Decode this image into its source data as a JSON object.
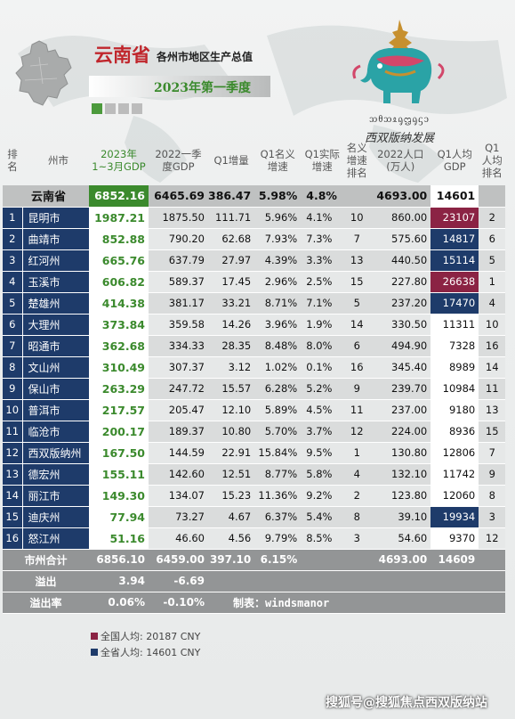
{
  "header": {
    "title": "云南省",
    "subtitle": "各州市地区生产总值",
    "period": "2023年第一季度"
  },
  "logo": {
    "script_text": "ᦉᦲᦉᦸᧂᦗᧂᦓᦱ",
    "chinese_text": "西双版纳发展"
  },
  "table": {
    "headers": [
      "排名",
      "州市",
      "2023年\n1~3月GDP",
      "2022一季度GDP",
      "Q1增量",
      "Q1名义增速",
      "Q1实际增速",
      "名义增速排名",
      "2022人口\n(万人)",
      "Q1人均GDP",
      "Q1人均排名"
    ],
    "province": {
      "name": "云南省",
      "gdp": "6852.16",
      "gdp22": "6465.69",
      "inc": "386.47",
      "nom": "5.98%",
      "real": "4.8%",
      "nrank": "",
      "pop": "4693.00",
      "pc": "14601",
      "pcr": ""
    },
    "rows": [
      {
        "rank": "1",
        "name": "昆明市",
        "gdp": "1987.21",
        "gdp22": "1875.50",
        "inc": "111.71",
        "nom": "5.96%",
        "real": "4.1%",
        "nrank": "10",
        "pop": "860.00",
        "pc": "23107",
        "pcr": "2",
        "hl": "red"
      },
      {
        "rank": "2",
        "name": "曲靖市",
        "gdp": "852.88",
        "gdp22": "790.20",
        "inc": "62.68",
        "nom": "7.93%",
        "real": "7.3%",
        "nrank": "7",
        "pop": "575.60",
        "pc": "14817",
        "pcr": "6",
        "hl": "blue"
      },
      {
        "rank": "3",
        "name": "红河州",
        "gdp": "665.76",
        "gdp22": "637.79",
        "inc": "27.97",
        "nom": "4.39%",
        "real": "3.3%",
        "nrank": "13",
        "pop": "440.50",
        "pc": "15114",
        "pcr": "5",
        "hl": "blue"
      },
      {
        "rank": "4",
        "name": "玉溪市",
        "gdp": "606.82",
        "gdp22": "589.37",
        "inc": "17.45",
        "nom": "2.96%",
        "real": "2.5%",
        "nrank": "15",
        "pop": "227.80",
        "pc": "26638",
        "pcr": "1",
        "hl": "red"
      },
      {
        "rank": "5",
        "name": "楚雄州",
        "gdp": "414.38",
        "gdp22": "381.17",
        "inc": "33.21",
        "nom": "8.71%",
        "real": "7.1%",
        "nrank": "5",
        "pop": "237.20",
        "pc": "17470",
        "pcr": "4",
        "hl": "blue"
      },
      {
        "rank": "6",
        "name": "大理州",
        "gdp": "373.84",
        "gdp22": "359.58",
        "inc": "14.26",
        "nom": "3.96%",
        "real": "1.9%",
        "nrank": "14",
        "pop": "330.50",
        "pc": "11311",
        "pcr": "10",
        "hl": ""
      },
      {
        "rank": "7",
        "name": "昭通市",
        "gdp": "362.68",
        "gdp22": "334.33",
        "inc": "28.35",
        "nom": "8.48%",
        "real": "8.0%",
        "nrank": "6",
        "pop": "494.90",
        "pc": "7328",
        "pcr": "16",
        "hl": ""
      },
      {
        "rank": "8",
        "name": "文山州",
        "gdp": "310.49",
        "gdp22": "307.37",
        "inc": "3.12",
        "nom": "1.02%",
        "real": "0.1%",
        "nrank": "16",
        "pop": "345.40",
        "pc": "8989",
        "pcr": "14",
        "hl": ""
      },
      {
        "rank": "9",
        "name": "保山市",
        "gdp": "263.29",
        "gdp22": "247.72",
        "inc": "15.57",
        "nom": "6.28%",
        "real": "5.2%",
        "nrank": "9",
        "pop": "239.70",
        "pc": "10984",
        "pcr": "11",
        "hl": ""
      },
      {
        "rank": "10",
        "name": "普洱市",
        "gdp": "217.57",
        "gdp22": "205.47",
        "inc": "12.10",
        "nom": "5.89%",
        "real": "4.5%",
        "nrank": "11",
        "pop": "237.00",
        "pc": "9180",
        "pcr": "13",
        "hl": ""
      },
      {
        "rank": "11",
        "name": "临沧市",
        "gdp": "200.17",
        "gdp22": "189.37",
        "inc": "10.80",
        "nom": "5.70%",
        "real": "3.7%",
        "nrank": "12",
        "pop": "224.00",
        "pc": "8936",
        "pcr": "15",
        "hl": ""
      },
      {
        "rank": "12",
        "name": "西双版纳州",
        "gdp": "167.50",
        "gdp22": "144.59",
        "inc": "22.91",
        "nom": "15.84%",
        "real": "9.5%",
        "nrank": "1",
        "pop": "130.80",
        "pc": "12806",
        "pcr": "7",
        "hl": ""
      },
      {
        "rank": "13",
        "name": "德宏州",
        "gdp": "155.11",
        "gdp22": "142.60",
        "inc": "12.51",
        "nom": "8.77%",
        "real": "5.8%",
        "nrank": "4",
        "pop": "132.10",
        "pc": "11742",
        "pcr": "9",
        "hl": ""
      },
      {
        "rank": "14",
        "name": "丽江市",
        "gdp": "149.30",
        "gdp22": "134.07",
        "inc": "15.23",
        "nom": "11.36%",
        "real": "9.2%",
        "nrank": "2",
        "pop": "123.80",
        "pc": "12060",
        "pcr": "8",
        "hl": ""
      },
      {
        "rank": "15",
        "name": "迪庆州",
        "gdp": "77.94",
        "gdp22": "73.27",
        "inc": "4.67",
        "nom": "6.37%",
        "real": "5.4%",
        "nrank": "8",
        "pop": "39.10",
        "pc": "19934",
        "pcr": "3",
        "hl": "blue"
      },
      {
        "rank": "16",
        "name": "怒江州",
        "gdp": "51.16",
        "gdp22": "46.60",
        "inc": "4.56",
        "nom": "9.79%",
        "real": "8.5%",
        "nrank": "3",
        "pop": "54.60",
        "pc": "9370",
        "pcr": "12",
        "hl": ""
      }
    ],
    "total": {
      "name": "市州合计",
      "gdp": "6856.10",
      "gdp22": "6459.00",
      "inc": "397.10",
      "nom": "6.15%",
      "pop": "4693.00",
      "pc": "14609"
    },
    "overflow": {
      "name": "溢出",
      "gdp": "3.94",
      "gdp22": "-6.69"
    },
    "overflow_rate": {
      "name": "溢出率",
      "gdp": "0.06%",
      "gdp22": "-0.10%",
      "credit": "制表：windsmanor"
    }
  },
  "legend": {
    "national": "全国人均: 20187 CNY",
    "provincial": "全省人均: 14601 CNY",
    "national_color": "#8b2344",
    "provincial_color": "#1e3b6a"
  },
  "watermark": "搜狐号@搜狐焦点西双版纳站"
}
